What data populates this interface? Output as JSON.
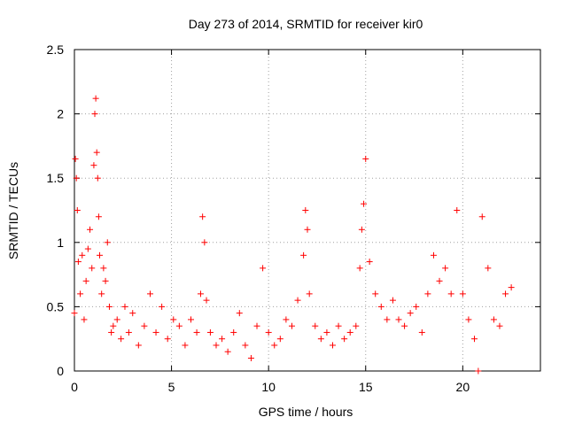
{
  "chart_data": {
    "type": "scatter",
    "title": "Day 273 of 2014, SRMTID for receiver kir0",
    "xlabel": "GPS time / hours",
    "ylabel": "SRMTID / TECUs",
    "xlim": [
      0,
      24
    ],
    "ylim": [
      0,
      2.5
    ],
    "xticks": [
      0,
      5,
      10,
      15,
      20
    ],
    "yticks": [
      0,
      0.5,
      1,
      1.5,
      2,
      2.5
    ],
    "xtick_labels": [
      "0",
      "5",
      "10",
      "15",
      "20"
    ],
    "ytick_labels": [
      "0",
      "0.5",
      "1",
      "1.5",
      "2",
      "2.5"
    ],
    "grid": true,
    "marker": "+",
    "color": "#ff0000",
    "series": [
      {
        "name": "SRMTID",
        "x": [
          0.0,
          0.05,
          0.1,
          0.15,
          0.2,
          0.3,
          0.4,
          0.5,
          0.6,
          0.7,
          0.8,
          0.9,
          1.0,
          1.05,
          1.1,
          1.15,
          1.2,
          1.25,
          1.3,
          1.4,
          1.5,
          1.6,
          1.7,
          1.8,
          1.9,
          2.0,
          2.2,
          2.4,
          2.6,
          2.8,
          3.0,
          3.3,
          3.6,
          3.9,
          4.2,
          4.5,
          4.8,
          5.1,
          5.4,
          5.7,
          6.0,
          6.3,
          6.5,
          6.6,
          6.7,
          6.8,
          7.0,
          7.3,
          7.6,
          7.9,
          8.2,
          8.5,
          8.8,
          9.1,
          9.4,
          9.7,
          10.0,
          10.3,
          10.6,
          10.9,
          11.2,
          11.5,
          11.8,
          11.9,
          12.0,
          12.1,
          12.4,
          12.7,
          13.0,
          13.3,
          13.6,
          13.9,
          14.2,
          14.5,
          14.7,
          14.8,
          14.9,
          15.0,
          15.2,
          15.5,
          15.8,
          16.1,
          16.4,
          16.7,
          17.0,
          17.3,
          17.6,
          17.9,
          18.2,
          18.5,
          18.8,
          19.1,
          19.4,
          19.7,
          20.0,
          20.3,
          20.6,
          20.8,
          21.0,
          21.3,
          21.6,
          21.9,
          22.2,
          22.5
        ],
        "y": [
          0.45,
          1.65,
          1.5,
          1.25,
          0.85,
          0.6,
          0.9,
          0.4,
          0.7,
          0.95,
          1.1,
          0.8,
          1.6,
          2.0,
          2.12,
          1.7,
          1.5,
          1.2,
          0.9,
          0.6,
          0.8,
          0.7,
          1.0,
          0.5,
          0.3,
          0.35,
          0.4,
          0.25,
          0.5,
          0.3,
          0.45,
          0.2,
          0.35,
          0.6,
          0.3,
          0.5,
          0.25,
          0.4,
          0.35,
          0.2,
          0.4,
          0.3,
          0.6,
          1.2,
          1.0,
          0.55,
          0.3,
          0.2,
          0.25,
          0.15,
          0.3,
          0.45,
          0.2,
          0.1,
          0.35,
          0.8,
          0.3,
          0.2,
          0.25,
          0.4,
          0.35,
          0.55,
          0.9,
          1.25,
          1.1,
          0.6,
          0.35,
          0.25,
          0.3,
          0.2,
          0.35,
          0.25,
          0.3,
          0.35,
          0.8,
          1.1,
          1.3,
          1.65,
          0.85,
          0.6,
          0.5,
          0.4,
          0.55,
          0.4,
          0.35,
          0.45,
          0.5,
          0.3,
          0.6,
          0.9,
          0.7,
          0.8,
          0.6,
          1.25,
          0.6,
          0.4,
          0.25,
          0.0,
          1.2,
          0.8,
          0.4,
          0.35,
          0.6,
          0.65
        ]
      }
    ]
  }
}
